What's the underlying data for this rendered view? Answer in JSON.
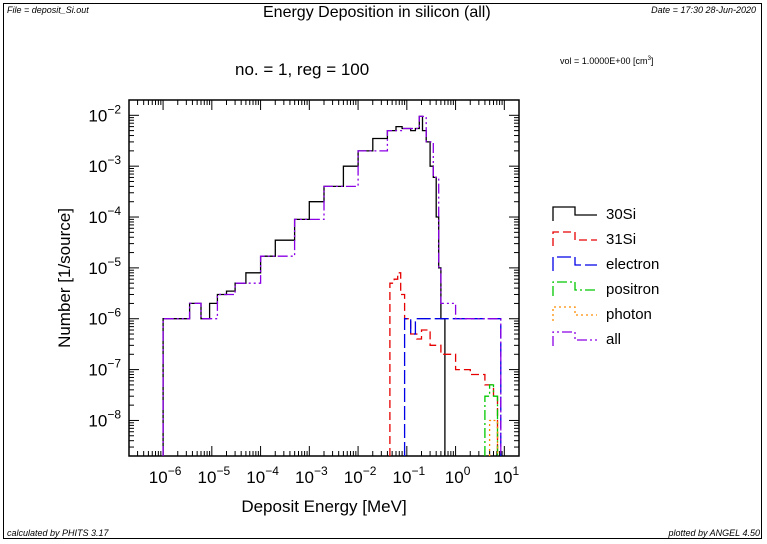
{
  "header": {
    "file_label": "File = deposit_Si.out",
    "title": "Energy Deposition in silicon (all)",
    "date_label": "Date = 17:30 28-Jun-2020"
  },
  "subtitle": "no. =  1,  reg  =    100",
  "vol_label": "vol  =   1.0000E+00 [cm",
  "vol_sup": "3",
  "vol_suffix": "]",
  "footer": {
    "left": "calculated by PHITS 3.17",
    "right": "plotted by ANGEL 4.50"
  },
  "colors": {
    "30Si": "#000000",
    "31Si": "#e60000",
    "electron": "#0000e6",
    "positron": "#00c800",
    "photon": "#ff8c00",
    "all": "#8c00e6"
  },
  "chart_data": {
    "type": "line",
    "xlabel": "Deposit Energy [MeV]",
    "ylabel": "Number [1/source]",
    "xscale": "log",
    "yscale": "log",
    "xlim": [
      2e-07,
      20
    ],
    "ylim": [
      2e-09,
      0.02
    ],
    "x_ticks": [
      {
        "base": "10",
        "exp": "−6",
        "value": 1e-06
      },
      {
        "base": "10",
        "exp": "−5",
        "value": 1e-05
      },
      {
        "base": "10",
        "exp": "−4",
        "value": 0.0001
      },
      {
        "base": "10",
        "exp": "−3",
        "value": 0.001
      },
      {
        "base": "10",
        "exp": "−2",
        "value": 0.01
      },
      {
        "base": "10",
        "exp": "−1",
        "value": 0.1
      },
      {
        "base": "10",
        "exp": "0",
        "value": 1
      },
      {
        "base": "10",
        "exp": "1",
        "value": 10
      }
    ],
    "y_ticks": [
      {
        "base": "10",
        "exp": "−8",
        "value": 1e-08
      },
      {
        "base": "10",
        "exp": "−7",
        "value": 1e-07
      },
      {
        "base": "10",
        "exp": "−6",
        "value": 1e-06
      },
      {
        "base": "10",
        "exp": "−5",
        "value": 1e-05
      },
      {
        "base": "10",
        "exp": "−4",
        "value": 0.0001
      },
      {
        "base": "10",
        "exp": "−3",
        "value": 0.001
      },
      {
        "base": "10",
        "exp": "−2",
        "value": 0.01
      }
    ],
    "legend_position": "right",
    "series": [
      {
        "name": "30Si",
        "style": "solid",
        "points": [
          [
            1e-06,
            1e-06
          ],
          [
            1.3e-06,
            1e-06
          ],
          [
            2e-06,
            1e-06
          ],
          [
            2.8e-06,
            1e-06
          ],
          [
            3.5e-06,
            2e-06
          ],
          [
            4.5e-06,
            2e-06
          ],
          [
            6e-06,
            1e-06
          ],
          [
            9e-06,
            2e-06
          ],
          [
            1.3e-05,
            3e-06
          ],
          [
            2e-05,
            3.5e-06
          ],
          [
            3e-05,
            5e-06
          ],
          [
            5e-05,
            8e-06
          ],
          [
            0.0001,
            1.7e-05
          ],
          [
            0.0002,
            3.5e-05
          ],
          [
            0.0005,
            9e-05
          ],
          [
            0.001,
            0.0002
          ],
          [
            0.002,
            0.0004
          ],
          [
            0.005,
            0.001
          ],
          [
            0.01,
            0.002
          ],
          [
            0.02,
            0.0035
          ],
          [
            0.04,
            0.005
          ],
          [
            0.06,
            0.006
          ],
          [
            0.08,
            0.0055
          ],
          [
            0.12,
            0.005
          ],
          [
            0.15,
            0.0055
          ],
          [
            0.18,
            0.0095
          ],
          [
            0.21,
            0.005
          ],
          [
            0.25,
            0.003
          ],
          [
            0.3,
            0.001
          ],
          [
            0.35,
            0.0006
          ],
          [
            0.4,
            0.0001
          ],
          [
            0.45,
            1e-05
          ],
          [
            0.5,
            1e-06
          ]
        ]
      },
      {
        "name": "31Si",
        "style": "dashed",
        "points": [
          [
            0.045,
            5e-06
          ],
          [
            0.055,
            6e-06
          ],
          [
            0.065,
            8e-06
          ],
          [
            0.075,
            3e-06
          ],
          [
            0.09,
            1e-06
          ],
          [
            0.12,
            5e-07
          ],
          [
            0.16,
            4e-07
          ],
          [
            0.2,
            6e-07
          ],
          [
            0.3,
            3e-07
          ],
          [
            0.5,
            2e-07
          ],
          [
            1.0,
            1e-07
          ],
          [
            2.0,
            8e-08
          ],
          [
            4.0,
            5e-08
          ],
          [
            6.0,
            3e-08
          ]
        ]
      },
      {
        "name": "electron",
        "style": "long-dash",
        "points": [
          [
            0.09,
            1e-06
          ],
          [
            0.12,
            5e-07
          ],
          [
            0.15,
            1e-06
          ],
          [
            0.2,
            1e-06
          ],
          [
            0.3,
            1e-06
          ],
          [
            0.5,
            1e-06
          ],
          [
            1.0,
            1e-06
          ],
          [
            2.0,
            1e-06
          ],
          [
            3.0,
            1e-06
          ],
          [
            5.0,
            1e-06
          ],
          [
            7.0,
            1e-06
          ]
        ]
      },
      {
        "name": "positron",
        "style": "dash-dot",
        "points": [
          [
            4.0,
            3e-08
          ],
          [
            5.0,
            5e-08
          ],
          [
            6.0,
            3e-08
          ]
        ]
      },
      {
        "name": "photon",
        "style": "dotted",
        "points": [
          [
            5.0,
            1e-08
          ],
          [
            6.0,
            1e-08
          ]
        ]
      },
      {
        "name": "all",
        "style": "dash-dot-dot",
        "points": [
          [
            1e-06,
            1e-06
          ],
          [
            2e-06,
            1e-06
          ],
          [
            3.5e-06,
            2e-06
          ],
          [
            6e-06,
            1e-06
          ],
          [
            1.3e-05,
            3e-06
          ],
          [
            3e-05,
            5e-06
          ],
          [
            0.0001,
            1.7e-05
          ],
          [
            0.0005,
            9e-05
          ],
          [
            0.002,
            0.0004
          ],
          [
            0.01,
            0.002
          ],
          [
            0.04,
            0.005
          ],
          [
            0.08,
            0.0055
          ],
          [
            0.15,
            0.0055
          ],
          [
            0.18,
            0.0095
          ],
          [
            0.25,
            0.003
          ],
          [
            0.35,
            0.0006
          ],
          [
            0.45,
            1e-05
          ],
          [
            0.5,
            2e-06
          ],
          [
            1.0,
            1e-06
          ],
          [
            3.0,
            1e-06
          ],
          [
            7.0,
            1e-06
          ]
        ]
      }
    ]
  }
}
